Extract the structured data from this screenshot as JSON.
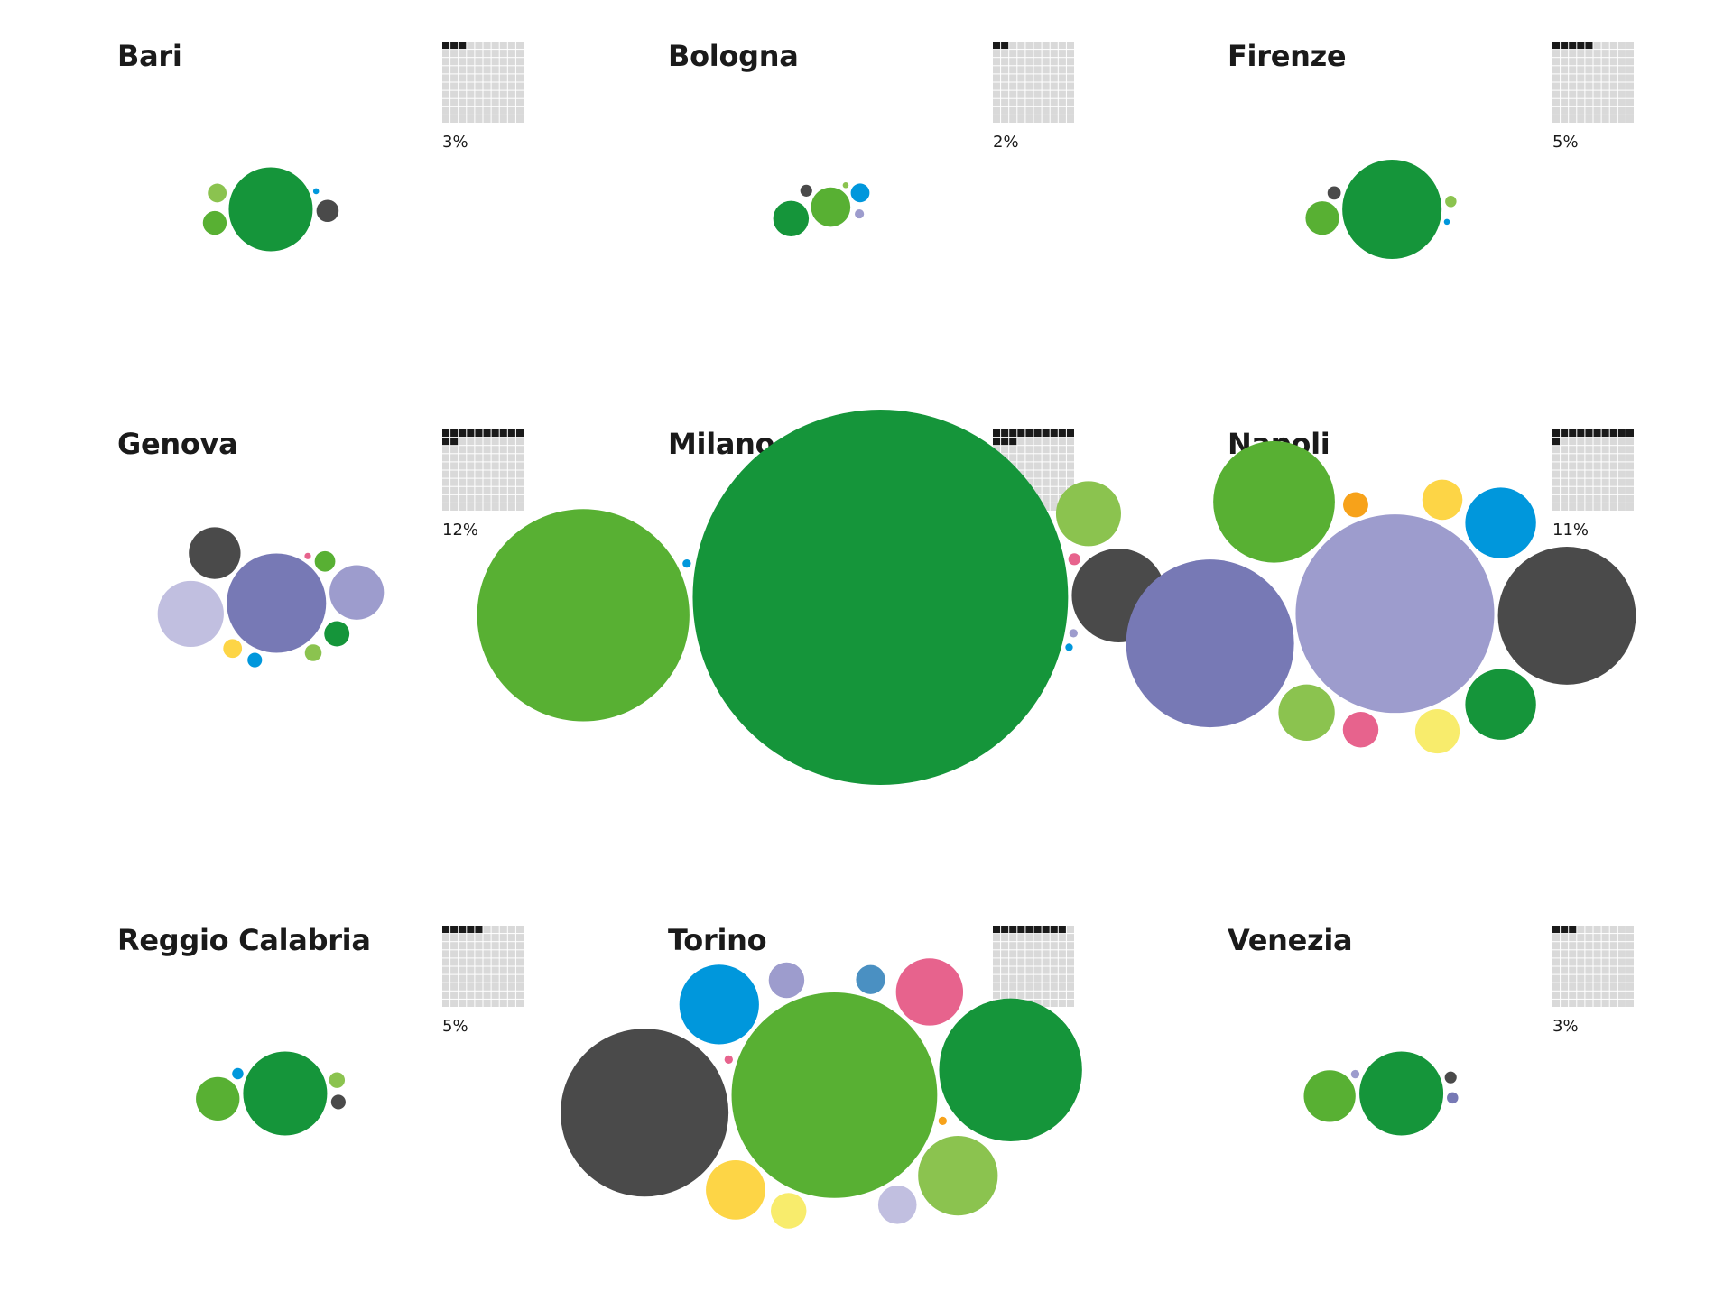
{
  "colors": {
    "dark_green": "#15953a",
    "green": "#58b033",
    "light_green": "#8bc34f",
    "dark_gray": "#4a4a4a",
    "blue": "#0097dc",
    "slate_purple": "#7779b5",
    "lavender": "#9d9ccd",
    "pale_lavender": "#c1bfe0",
    "yellow": "#fdd546",
    "pale_yellow": "#f8ec6c",
    "pink": "#e7638d",
    "orange": "#f7a21a",
    "steel_blue": "#4a90c2",
    "waffle_filled": "#1a1a1a",
    "waffle_empty": "#d9d9d9"
  },
  "chart_data": [
    {
      "type": "packed-bubble",
      "title": "Bari",
      "waffle_percent": 3,
      "percent_label": "3%",
      "series": [
        {
          "color": "dark_green",
          "value": 100
        },
        {
          "color": "dark_gray",
          "value": 7
        },
        {
          "color": "green",
          "value": 8
        },
        {
          "color": "blue",
          "value": 0.5
        },
        {
          "color": "light_green",
          "value": 5
        }
      ]
    },
    {
      "type": "packed-bubble",
      "title": "Bologna",
      "waffle_percent": 2,
      "percent_label": "2%",
      "series": [
        {
          "color": "dark_green",
          "value": 18
        },
        {
          "color": "green",
          "value": 22
        },
        {
          "color": "lavender",
          "value": 1.2
        },
        {
          "color": "blue",
          "value": 5
        },
        {
          "color": "dark_gray",
          "value": 2
        },
        {
          "color": "light_green",
          "value": 0.5
        }
      ]
    },
    {
      "type": "packed-bubble",
      "title": "Firenze",
      "waffle_percent": 5,
      "percent_label": "5%",
      "series": [
        {
          "color": "dark_green",
          "value": 140
        },
        {
          "color": "blue",
          "value": 0.5
        },
        {
          "color": "light_green",
          "value": 1.8
        },
        {
          "color": "green",
          "value": 16
        },
        {
          "color": "dark_gray",
          "value": 2.5
        }
      ]
    },
    {
      "type": "packed-bubble",
      "title": "Genova",
      "waffle_percent": 12,
      "percent_label": "12%",
      "series": [
        {
          "color": "slate_purple",
          "value": 140
        },
        {
          "color": "pale_lavender",
          "value": 62
        },
        {
          "color": "dark_gray",
          "value": 38
        },
        {
          "color": "lavender",
          "value": 42
        },
        {
          "color": "dark_green",
          "value": 9
        },
        {
          "color": "yellow",
          "value": 5
        },
        {
          "color": "blue",
          "value": 3
        },
        {
          "color": "green",
          "value": 6
        },
        {
          "color": "light_green",
          "value": 4
        },
        {
          "color": "pink",
          "value": 0.6
        }
      ]
    },
    {
      "type": "packed-bubble",
      "title": "Milano",
      "waffle_percent": 13,
      "percent_label": "13%",
      "series": [
        {
          "color": "dark_green",
          "value": 2000
        },
        {
          "color": "green",
          "value": 640
        },
        {
          "color": "dark_gray",
          "value": 125
        },
        {
          "color": "light_green",
          "value": 60
        },
        {
          "color": "lavender",
          "value": 1
        },
        {
          "color": "blue",
          "value": 1
        },
        {
          "color": "pink",
          "value": 2
        },
        {
          "color": "blue",
          "value": 0.8
        }
      ]
    },
    {
      "type": "packed-bubble",
      "title": "Napoli",
      "waffle_percent": 11,
      "percent_label": "11%",
      "series": [
        {
          "color": "green",
          "value": 210
        },
        {
          "color": "blue",
          "value": 71
        },
        {
          "color": "dark_green",
          "value": 71
        },
        {
          "color": "lavender",
          "value": 560
        },
        {
          "color": "slate_purple",
          "value": 400
        },
        {
          "color": "dark_gray",
          "value": 270
        },
        {
          "color": "pink",
          "value": 18
        },
        {
          "color": "orange",
          "value": 9
        },
        {
          "color": "yellow",
          "value": 23
        },
        {
          "color": "light_green",
          "value": 45
        },
        {
          "color": "pale_yellow",
          "value": 28
        }
      ]
    },
    {
      "type": "packed-bubble",
      "title": "Reggio Calabria",
      "waffle_percent": 5,
      "percent_label": "5%",
      "series": [
        {
          "color": "dark_green",
          "value": 100
        },
        {
          "color": "green",
          "value": 27
        },
        {
          "color": "dark_gray",
          "value": 3
        },
        {
          "color": "light_green",
          "value": 3.5
        },
        {
          "color": "blue",
          "value": 1.8
        }
      ]
    },
    {
      "type": "packed-bubble",
      "title": "Torino",
      "waffle_percent": 9,
      "percent_label": "9%",
      "series": [
        {
          "color": "dark_gray",
          "value": 400
        },
        {
          "color": "green",
          "value": 600
        },
        {
          "color": "dark_green",
          "value": 290
        },
        {
          "color": "pink",
          "value": 64
        },
        {
          "color": "light_green",
          "value": 90
        },
        {
          "color": "pale_lavender",
          "value": 21
        },
        {
          "color": "steel_blue",
          "value": 12
        },
        {
          "color": "lavender",
          "value": 18
        },
        {
          "color": "blue",
          "value": 90
        },
        {
          "color": "pale_yellow",
          "value": 18
        },
        {
          "color": "yellow",
          "value": 50
        },
        {
          "color": "orange",
          "value": 1
        },
        {
          "color": "pink",
          "value": 1
        }
      ]
    },
    {
      "type": "packed-bubble",
      "title": "Venezia",
      "waffle_percent": 3,
      "percent_label": "3%",
      "series": [
        {
          "color": "dark_green",
          "value": 100
        },
        {
          "color": "green",
          "value": 38
        },
        {
          "color": "dark_gray",
          "value": 2
        },
        {
          "color": "slate_purple",
          "value": 1.8
        },
        {
          "color": "lavender",
          "value": 1
        }
      ]
    }
  ]
}
